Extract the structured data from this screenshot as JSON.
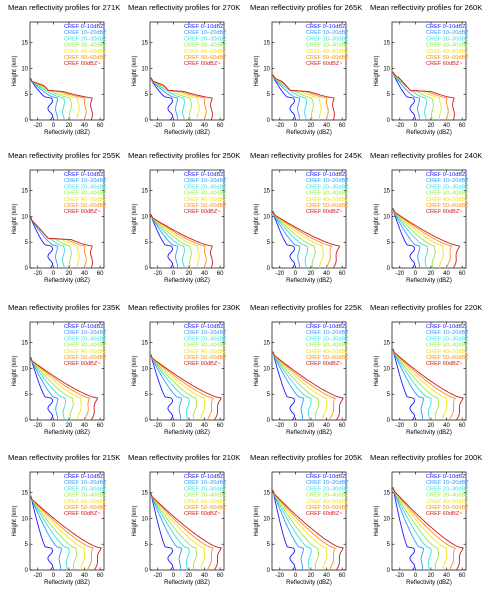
{
  "figure": {
    "xlabel": "Reflectivity (dBZ)",
    "ylabel": "Height (km)"
  },
  "legend": [
    {
      "label": "CREF 0–10dBZ",
      "color": "#1a1aff"
    },
    {
      "label": "CREF 10–20dBZ",
      "color": "#3399ff"
    },
    {
      "label": "CREF 20–30dBZ",
      "color": "#33e0e0"
    },
    {
      "label": "CREF 30–40dBZ",
      "color": "#99e64d"
    },
    {
      "label": "CREF 40–50dBZ",
      "color": "#f2e61a"
    },
    {
      "label": "CREF 50–60dBZ",
      "color": "#ff8c1a"
    },
    {
      "label": "CREF 60dBZ~",
      "color": "#cc1a1a"
    }
  ],
  "chart_data": [
    {
      "type": "line",
      "title": "Mean reflectivity profiles for 271K",
      "xlim": [
        -30,
        65
      ],
      "ylim": [
        0,
        19
      ],
      "xticks": [
        -20,
        0,
        20,
        40,
        60
      ],
      "yticks": [
        0,
        5,
        10,
        15
      ],
      "ctt": 271
    },
    {
      "type": "line",
      "title": "Mean reflectivity profiles for 270K",
      "xlim": [
        -30,
        65
      ],
      "ylim": [
        0,
        19
      ],
      "xticks": [
        -20,
        0,
        20,
        40,
        60
      ],
      "yticks": [
        0,
        5,
        10,
        15
      ],
      "ctt": 270
    },
    {
      "type": "line",
      "title": "Mean reflectivity profiles for 265K",
      "xlim": [
        -30,
        65
      ],
      "ylim": [
        0,
        19
      ],
      "xticks": [
        -20,
        0,
        20,
        40,
        60
      ],
      "yticks": [
        0,
        5,
        10,
        15
      ],
      "ctt": 265
    },
    {
      "type": "line",
      "title": "Mean reflectivity profiles for 260K",
      "xlim": [
        -30,
        65
      ],
      "ylim": [
        0,
        19
      ],
      "xticks": [
        -20,
        0,
        20,
        40,
        60
      ],
      "yticks": [
        0,
        5,
        10,
        15
      ],
      "ctt": 260
    },
    {
      "type": "line",
      "title": "Mean reflectivity profiles for 255K",
      "xlim": [
        -30,
        65
      ],
      "ylim": [
        0,
        19
      ],
      "xticks": [
        -20,
        0,
        20,
        40,
        60
      ],
      "yticks": [
        0,
        5,
        10,
        15
      ],
      "ctt": 255
    },
    {
      "type": "line",
      "title": "Mean reflectivity profiles for 250K",
      "xlim": [
        -30,
        65
      ],
      "ylim": [
        0,
        19
      ],
      "xticks": [
        -20,
        0,
        20,
        40,
        60
      ],
      "yticks": [
        0,
        5,
        10,
        15
      ],
      "ctt": 250
    },
    {
      "type": "line",
      "title": "Mean reflectivity profiles for 245K",
      "xlim": [
        -30,
        65
      ],
      "ylim": [
        0,
        19
      ],
      "xticks": [
        -20,
        0,
        20,
        40,
        60
      ],
      "yticks": [
        0,
        5,
        10,
        15
      ],
      "ctt": 245
    },
    {
      "type": "line",
      "title": "Mean reflectivity profiles for 240K",
      "xlim": [
        -30,
        65
      ],
      "ylim": [
        0,
        19
      ],
      "xticks": [
        -20,
        0,
        20,
        40,
        60
      ],
      "yticks": [
        0,
        5,
        10,
        15
      ],
      "ctt": 240
    },
    {
      "type": "line",
      "title": "Mean reflectivity profiles for 235K",
      "xlim": [
        -30,
        65
      ],
      "ylim": [
        0,
        19
      ],
      "xticks": [
        -20,
        0,
        20,
        40,
        60
      ],
      "yticks": [
        0,
        5,
        10,
        15
      ],
      "ctt": 235
    },
    {
      "type": "line",
      "title": "Mean reflectivity profiles for 230K",
      "xlim": [
        -30,
        65
      ],
      "ylim": [
        0,
        19
      ],
      "xticks": [
        -20,
        0,
        20,
        40,
        60
      ],
      "yticks": [
        0,
        5,
        10,
        15
      ],
      "ctt": 230
    },
    {
      "type": "line",
      "title": "Mean reflectivity profiles for 225K",
      "xlim": [
        -30,
        65
      ],
      "ylim": [
        0,
        19
      ],
      "xticks": [
        -20,
        0,
        20,
        40,
        60
      ],
      "yticks": [
        0,
        5,
        10,
        15
      ],
      "ctt": 225
    },
    {
      "type": "line",
      "title": "Mean reflectivity profiles for 220K",
      "xlim": [
        -30,
        65
      ],
      "ylim": [
        0,
        19
      ],
      "xticks": [
        -20,
        0,
        20,
        40,
        60
      ],
      "yticks": [
        0,
        5,
        10,
        15
      ],
      "ctt": 220
    },
    {
      "type": "line",
      "title": "Mean reflectivity profiles for 215K",
      "xlim": [
        -30,
        65
      ],
      "ylim": [
        0,
        19
      ],
      "xticks": [
        -20,
        0,
        20,
        40,
        60
      ],
      "yticks": [
        0,
        5,
        10,
        15
      ],
      "ctt": 215
    },
    {
      "type": "line",
      "title": "Mean reflectivity profiles for 210K",
      "xlim": [
        -30,
        65
      ],
      "ylim": [
        0,
        19
      ],
      "xticks": [
        -20,
        0,
        20,
        40,
        60
      ],
      "yticks": [
        0,
        5,
        10,
        15
      ],
      "ctt": 210
    },
    {
      "type": "line",
      "title": "Mean reflectivity profiles for 205K",
      "xlim": [
        -30,
        65
      ],
      "ylim": [
        0,
        19
      ],
      "xticks": [
        -20,
        0,
        20,
        40,
        60
      ],
      "yticks": [
        0,
        5,
        10,
        15
      ],
      "ctt": 205
    },
    {
      "type": "line",
      "title": "Mean reflectivity profiles for 200K",
      "xlim": [
        -30,
        65
      ],
      "ylim": [
        0,
        19
      ],
      "xticks": [
        -20,
        0,
        20,
        40,
        60
      ],
      "yticks": [
        0,
        5,
        10,
        15
      ],
      "ctt": 200
    }
  ]
}
